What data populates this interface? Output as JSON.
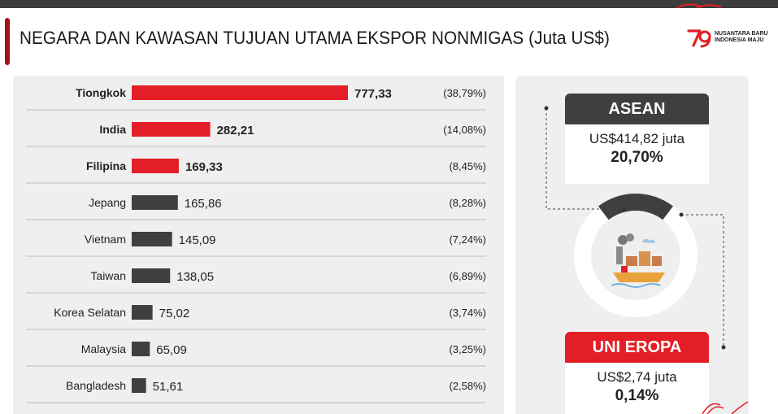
{
  "header": {
    "title": "NEGARA DAN KAWASAN TUJUAN UTAMA EKSPOR NONMIGAS (Juta US$)",
    "logo_line1": "NUSANTARA BARU",
    "logo_line2": "INDONESIA MAJU",
    "logo_icon": "79-anniversary-logo-icon"
  },
  "colors": {
    "accent_red": "#e41e26",
    "title_accent": "#a31419",
    "bar_dark": "#3f3f3f",
    "panel_bg": "#efefef"
  },
  "chart_data": {
    "type": "bar",
    "orientation": "horizontal",
    "title": "NEGARA DAN KAWASAN TUJUAN UTAMA EKSPOR NONMIGAS (Juta US$)",
    "categories": [
      "Tiongkok",
      "India",
      "Filipina",
      "Jepang",
      "Vietnam",
      "Taiwan",
      "Korea Selatan",
      "Malaysia",
      "Bangladesh"
    ],
    "values": [
      777.33,
      282.21,
      169.33,
      165.86,
      145.09,
      138.05,
      75.02,
      65.09,
      51.61
    ],
    "value_labels": [
      "777,33",
      "282,21",
      "169,33",
      "165,86",
      "145,09",
      "138,05",
      "75,02",
      "65,09",
      "51,61"
    ],
    "share_labels": [
      "(38,79%)",
      "(14,08%)",
      "(8,45%)",
      "(8,28%)",
      "(7,24%)",
      "(6,89%)",
      "(3,74%)",
      "(3,25%)",
      "(2,58%)"
    ],
    "highlighted": [
      true,
      true,
      true,
      false,
      false,
      false,
      false,
      false,
      false
    ],
    "xlim": [
      0,
      777.33
    ],
    "grid": false
  },
  "regions": {
    "asean": {
      "name": "ASEAN",
      "amount": "US$414,82 juta",
      "share": "20,70%",
      "share_value": 20.7
    },
    "uni_eropa": {
      "name": "UNI EROPA",
      "amount": "US$2,74 juta",
      "share": "0,14%",
      "share_value": 0.14
    },
    "center_icon": "cargo-ship-factory-icon"
  }
}
